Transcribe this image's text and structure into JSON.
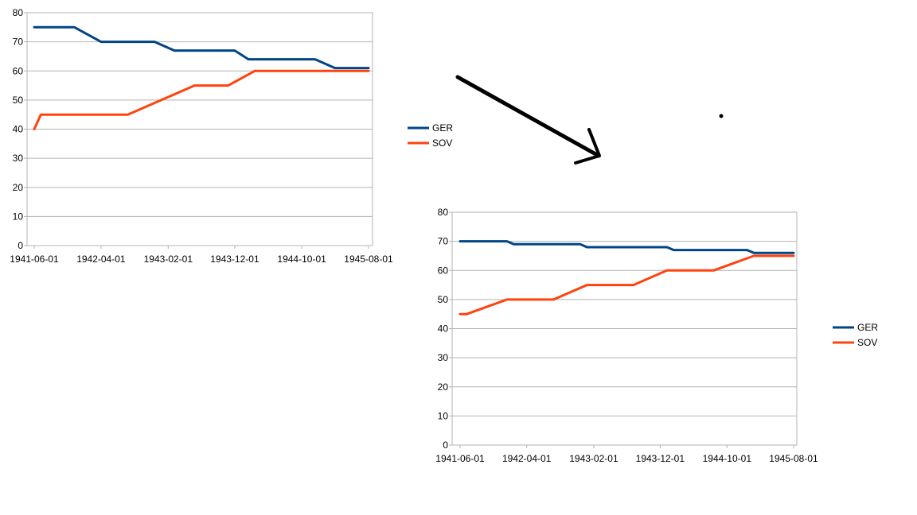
{
  "chart_data": [
    {
      "type": "line",
      "title": "",
      "xlabel": "",
      "ylabel": "",
      "ylim": [
        0,
        80
      ],
      "yticks": [
        0,
        10,
        20,
        30,
        40,
        50,
        60,
        70,
        80
      ],
      "xticks": [
        "1941-06-01",
        "1942-04-01",
        "1943-02-01",
        "1943-12-01",
        "1944-10-01",
        "1945-08-01"
      ],
      "grid": true,
      "legend_position": "right",
      "series": [
        {
          "name": "GER",
          "color": "#004586",
          "x": [
            "1941-06-01",
            "1941-12-01",
            "1942-04-01",
            "1942-12-01",
            "1943-03-01",
            "1943-12-01",
            "1944-02-01",
            "1944-12-01",
            "1945-03-01",
            "1945-08-01"
          ],
          "y": [
            75,
            75,
            70,
            70,
            67,
            67,
            64,
            64,
            61,
            61
          ]
        },
        {
          "name": "SOV",
          "color": "#ff420e",
          "x": [
            "1941-06-01",
            "1941-07-01",
            "1942-08-01",
            "1943-06-01",
            "1943-11-01",
            "1944-03-01",
            "1945-08-01"
          ],
          "y": [
            40,
            45,
            45,
            55,
            55,
            60,
            60
          ]
        }
      ]
    },
    {
      "type": "line",
      "title": "",
      "xlabel": "",
      "ylabel": "",
      "ylim": [
        0,
        80
      ],
      "yticks": [
        0,
        10,
        20,
        30,
        40,
        50,
        60,
        70,
        80
      ],
      "xticks": [
        "1941-06-01",
        "1942-04-01",
        "1943-02-01",
        "1943-12-01",
        "1944-10-01",
        "1945-08-01"
      ],
      "grid": true,
      "legend_position": "right",
      "series": [
        {
          "name": "GER",
          "color": "#004586",
          "x": [
            "1941-06-01",
            "1942-01-01",
            "1942-02-01",
            "1942-12-01",
            "1943-01-01",
            "1944-01-01",
            "1944-02-01",
            "1945-01-01",
            "1945-02-01",
            "1945-08-01"
          ],
          "y": [
            70,
            70,
            69,
            69,
            68,
            68,
            67,
            67,
            66,
            66
          ]
        },
        {
          "name": "SOV",
          "color": "#ff420e",
          "x": [
            "1941-06-01",
            "1941-07-01",
            "1942-01-01",
            "1942-08-01",
            "1943-01-01",
            "1943-08-01",
            "1944-01-01",
            "1944-08-01",
            "1945-02-01",
            "1945-08-01"
          ],
          "y": [
            45,
            45,
            50,
            50,
            55,
            55,
            60,
            60,
            65,
            65
          ]
        }
      ]
    }
  ]
}
